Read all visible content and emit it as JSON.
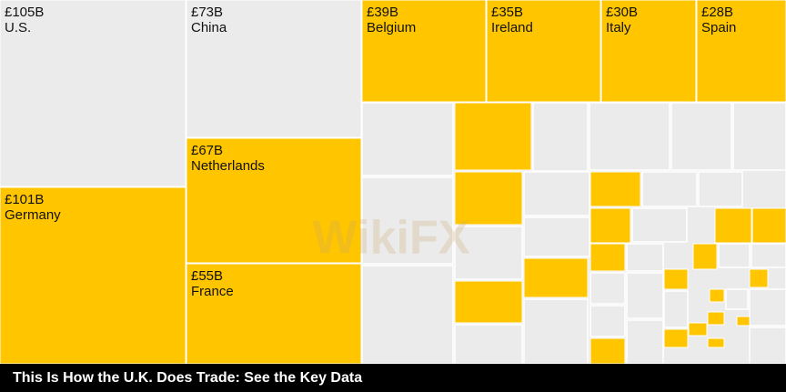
{
  "chart_data": {
    "type": "treemap",
    "title": "This Is How the U.K. Does Trade: See the Key Data",
    "watermark": "WikiFX",
    "categories": [
      "U.S.",
      "China",
      "Germany",
      "Netherlands",
      "France",
      "Belgium",
      "Ireland",
      "Italy",
      "Spain"
    ],
    "values": [
      105,
      73,
      101,
      67,
      55,
      39,
      35,
      30,
      28
    ],
    "value_labels": [
      "£105B",
      "£73B",
      "£101B",
      "£67B",
      "£55B",
      "£39B",
      "£35B",
      "£30B",
      "£28B"
    ],
    "colors": [
      "#ebebeb",
      "#ebebeb",
      "#ffc600",
      "#ffc600",
      "#ffc600",
      "#ffc600",
      "#ffc600",
      "#ffc600",
      "#ffc600"
    ]
  }
}
